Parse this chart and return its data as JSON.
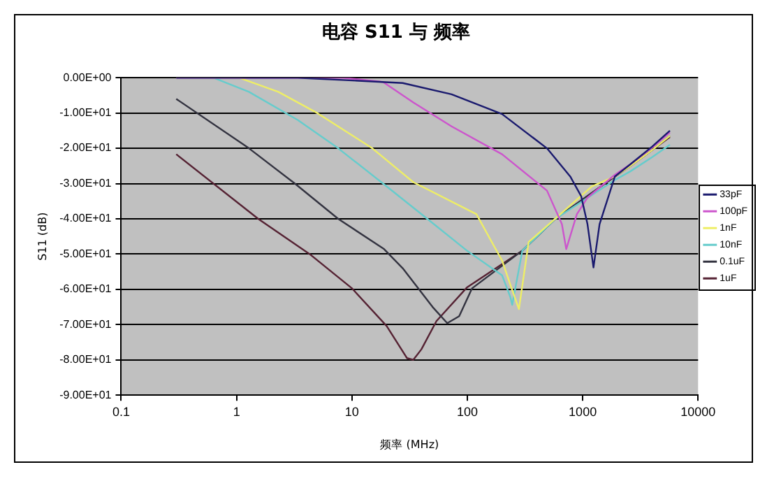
{
  "chart_data": {
    "type": "line",
    "title": "电容 S11 与 频率",
    "xlabel": "频率 (MHz)",
    "ylabel": "S11 (dB)",
    "log": "x",
    "grid": "y",
    "legend": "right",
    "marker": "none",
    "line_style": "solid",
    "xlim": [
      0.1,
      10000
    ],
    "xticks": [
      0.1,
      1,
      10,
      100,
      1000,
      10000
    ],
    "ylim": [
      -90,
      0
    ],
    "yticks": [
      {
        "value": 0,
        "label": "0.00E+00"
      },
      {
        "value": -10,
        "label": "-1.00E+01"
      },
      {
        "value": -20,
        "label": "-2.00E+01"
      },
      {
        "value": -30,
        "label": "-3.00E+01"
      },
      {
        "value": -40,
        "label": "-4.00E+01"
      },
      {
        "value": -50,
        "label": "-5.00E+01"
      },
      {
        "value": -60,
        "label": "-6.00E+01"
      },
      {
        "value": -70,
        "label": "-7.00E+01"
      },
      {
        "value": -80,
        "label": "-8.00E+01"
      },
      {
        "value": -90,
        "label": "-9.00E+01"
      }
    ],
    "series": [
      {
        "name": "33pF",
        "color": "#1a1a6e",
        "x": [
          0.3,
          3.4,
          27.5,
          73,
          200,
          490,
          780,
          970,
          1100,
          1240,
          1400,
          1900,
          2600,
          4000,
          5700
        ],
        "values": [
          0,
          0,
          -1.5,
          -4.7,
          -10.3,
          -20,
          -28,
          -33.6,
          -41.5,
          -53.8,
          -41.5,
          -28,
          -24.5,
          -19.5,
          -15
        ]
      },
      {
        "name": "100pF",
        "color": "#cc55cc",
        "x": [
          0.3,
          8.4,
          18.6,
          34,
          73,
          200,
          490,
          660,
          720,
          890,
          1100,
          1900,
          2600,
          4000,
          5700
        ],
        "values": [
          0,
          0,
          -1.2,
          -7,
          -13.8,
          -21.7,
          -32,
          -41.5,
          -48.6,
          -38.7,
          -34,
          -27.5,
          -24.5,
          -19.8,
          -15.5
        ]
      },
      {
        "name": "1nF",
        "color": "#eeee66",
        "x": [
          0.3,
          1.05,
          2.3,
          5,
          15,
          34,
          120,
          163,
          200,
          235,
          280,
          340,
          1200,
          1900,
          2600,
          4000,
          5700
        ],
        "values": [
          0,
          0,
          -4,
          -10,
          -20,
          -29.6,
          -38.7,
          -46.6,
          -51.8,
          -58.5,
          -65.6,
          -46.6,
          -30.8,
          -28,
          -25,
          -20.5,
          -16.5
        ]
      },
      {
        "name": "10nF",
        "color": "#66cccc",
        "x": [
          0.3,
          0.63,
          1.28,
          3.4,
          7.6,
          18.6,
          45,
          99,
          200,
          235,
          245,
          300,
          580,
          1900,
          2600,
          4000,
          5700
        ],
        "values": [
          0,
          0,
          -4,
          -12,
          -20,
          -30,
          -40,
          -49,
          -56,
          -62,
          -64.4,
          -49,
          -40,
          -29,
          -26.5,
          -22.5,
          -19
        ]
      },
      {
        "name": "0.1uF",
        "color": "#333340",
        "x": [
          0.3,
          1.28,
          3.2,
          7.6,
          19,
          27.5,
          50,
          67,
          85,
          110,
          300,
          580,
          1900,
          2600,
          4000,
          5700
        ],
        "values": [
          -6,
          -20,
          -30,
          -40,
          -48.6,
          -54,
          -65,
          -69.6,
          -67.6,
          -59.7,
          -49,
          -40,
          -28,
          -25,
          -20.5,
          -16.5
        ]
      },
      {
        "name": "1uF",
        "color": "#552233",
        "x": [
          0.3,
          1.54,
          4.3,
          10,
          20,
          30,
          34,
          40,
          54,
          99,
          300,
          580,
          1900,
          2600,
          4000,
          5700
        ],
        "values": [
          -21.7,
          -40,
          -50,
          -59.7,
          -70.4,
          -79.5,
          -80,
          -77,
          -69,
          -59.5,
          -49,
          -40,
          -28,
          -25,
          -20.5,
          -16.8
        ]
      }
    ]
  }
}
